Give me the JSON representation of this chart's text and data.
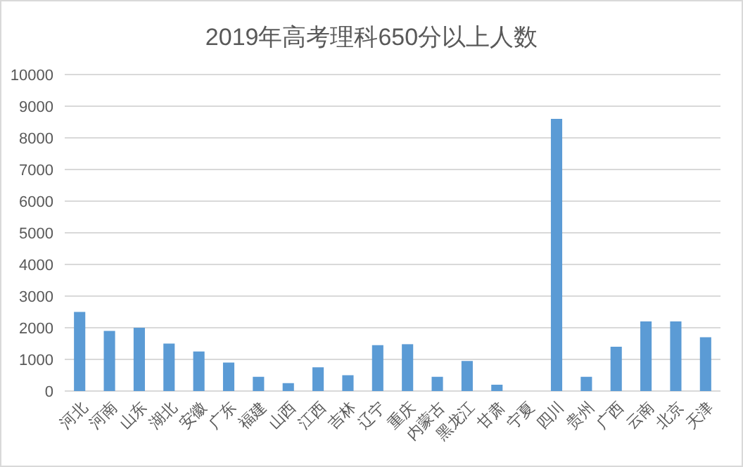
{
  "chart_data": {
    "type": "bar",
    "title": "2019年高考理科650分以上人数",
    "categories": [
      "河北",
      "河南",
      "山东",
      "湖北",
      "安徽",
      "广东",
      "福建",
      "山西",
      "江西",
      "吉林",
      "辽宁",
      "重庆",
      "内蒙古",
      "黑龙江",
      "甘肃",
      "宁夏",
      "四川",
      "贵州",
      "广西",
      "云南",
      "北京",
      "天津"
    ],
    "values": [
      2500,
      1900,
      2000,
      1500,
      1250,
      900,
      450,
      250,
      750,
      500,
      1450,
      1480,
      450,
      950,
      200,
      null,
      8600,
      450,
      1400,
      2200,
      2200,
      1700
    ],
    "color": "#5b9bd5",
    "ylim": [
      0,
      10000
    ],
    "yticks": [
      0,
      1000,
      2000,
      3000,
      4000,
      5000,
      6000,
      7000,
      8000,
      9000,
      10000
    ],
    "grid": "y"
  }
}
